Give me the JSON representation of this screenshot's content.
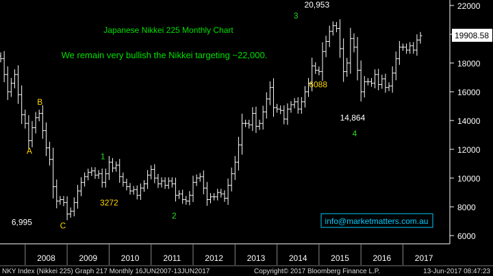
{
  "chart_data": {
    "type": "ohlc",
    "title": "Japanese Nikkei 225 Monthly Chart",
    "subtitle": "We remain very bullish the Nikkei targeting ~22,000.",
    "y_ticks": [
      "22000",
      "20000",
      "18000",
      "16000",
      "14000",
      "12000",
      "10000",
      "8000",
      "6000"
    ],
    "ylim": [
      5500,
      22500
    ],
    "x_labels": [
      "2008",
      "2009",
      "2010",
      "2011",
      "2012",
      "2013",
      "2014",
      "2015",
      "2016",
      "2017"
    ],
    "last_price_label": "19908.58",
    "colors": {
      "background": "#000000",
      "bars": "#ffffff",
      "title": "#00e000",
      "yellow": "#ffd700",
      "green": "#22dd22",
      "price_box": "#ffffff",
      "contact": "#00ccff"
    },
    "closes": [
      18300,
      17200,
      16000,
      16600,
      17200,
      15800,
      14400,
      13800,
      12600,
      13500,
      14200,
      14500,
      13300,
      12100,
      11300,
      9400,
      8400,
      8500,
      8300,
      7500,
      7700,
      8300,
      9100,
      9700,
      10100,
      10400,
      10500,
      10200,
      10300,
      9700,
      10300,
      11100,
      10700,
      10900,
      10100,
      9700,
      9400,
      9100,
      9200,
      8800,
      9300,
      9600,
      10200,
      10600,
      10000,
      9600,
      9800,
      9500,
      9800,
      9600,
      8800,
      8900,
      8500,
      8400,
      8800,
      9700,
      10000,
      10100,
      9300,
      8500,
      8700,
      8700,
      9000,
      8900,
      8600,
      9500,
      10300,
      11100,
      12300,
      13800,
      13800,
      13700,
      14500,
      13600,
      13800,
      14600,
      15500,
      16300,
      14900,
      14800,
      14700,
      14100,
      14800,
      15100,
      15300,
      14800,
      15300,
      16000,
      16600,
      17800,
      17500,
      17400,
      18800,
      19500,
      20200,
      20600,
      20400,
      19000,
      17400,
      18000,
      19700,
      19100,
      17500,
      16000,
      16700,
      16700,
      16600,
      17200,
      16500,
      16900,
      16300,
      16400,
      17300,
      18300,
      19100,
      19100,
      18900,
      19200,
      18900,
      19600,
      19900
    ],
    "annotations": [
      {
        "text": "A",
        "color": "yellow",
        "x": 2008.1,
        "y": 11700
      },
      {
        "text": "B",
        "color": "yellow",
        "x": 2008.35,
        "y": 15100
      },
      {
        "text": "6,995",
        "color": "white",
        "x": 2007.92,
        "y": 6750
      },
      {
        "text": "C",
        "color": "yellow",
        "x": 2008.9,
        "y": 6500
      },
      {
        "text": "1",
        "color": "green",
        "x": 2009.85,
        "y": 11300
      },
      {
        "text": "3272",
        "color": "yellow",
        "x": 2010.0,
        "y": 8100
      },
      {
        "text": "2",
        "color": "green",
        "x": 2011.55,
        "y": 7200
      },
      {
        "text": "3",
        "color": "green",
        "x": 2014.45,
        "y": 21100
      },
      {
        "text": "20,953",
        "color": "white",
        "x": 2014.95,
        "y": 21850
      },
      {
        "text": "6088",
        "color": "yellow",
        "x": 2014.98,
        "y": 16300
      },
      {
        "text": "14,864",
        "color": "white",
        "x": 2015.8,
        "y": 14000
      },
      {
        "text": "4",
        "color": "green",
        "x": 2015.85,
        "y": 12900
      }
    ]
  },
  "contact": "info@marketmatters.com.au",
  "footer": {
    "left": "NKY Index (Nikkei 225) Graph 217  Monthly 16JUN2007-13JUN2017",
    "center": "Copyright© 2017 Bloomberg Finance L.P.",
    "right": "13-Jun-2017 08:47:23"
  }
}
